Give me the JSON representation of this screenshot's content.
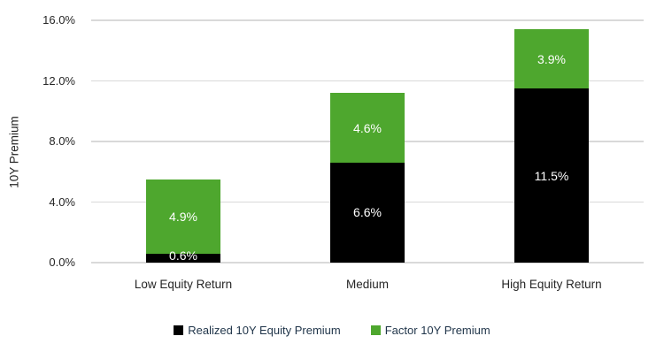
{
  "chart_data": {
    "type": "bar",
    "stacked": true,
    "title": "",
    "ylabel": "10Y Premium",
    "xlabel": "",
    "ylim": [
      0,
      16
    ],
    "grid": true,
    "legend_position": "bottom",
    "categories": [
      "Low Equity Return",
      "Medium",
      "High Equity Return"
    ],
    "series": [
      {
        "name": "Realized 10Y Equity Premium",
        "color": "#000000",
        "values": [
          0.6,
          6.6,
          11.5
        ],
        "labels": [
          "0.6%",
          "6.6%",
          "11.5%"
        ]
      },
      {
        "name": "Factor 10Y Premium",
        "color": "#4ea72e",
        "values": [
          4.9,
          4.6,
          3.9
        ],
        "labels": [
          "4.9%",
          "4.6%",
          "3.9%"
        ]
      }
    ],
    "yticks": [
      {
        "value": 0,
        "label": "0.0%"
      },
      {
        "value": 4,
        "label": "4.0%"
      },
      {
        "value": 8,
        "label": "8.0%"
      },
      {
        "value": 12,
        "label": "12.0%"
      },
      {
        "value": 16,
        "label": "16.0%"
      }
    ]
  },
  "colors": {
    "gridline": "#d9d9d9",
    "axis_text": "#262626",
    "legend_text": "#1f3449",
    "data_label_text": "#ffffff",
    "background": "#ffffff"
  }
}
